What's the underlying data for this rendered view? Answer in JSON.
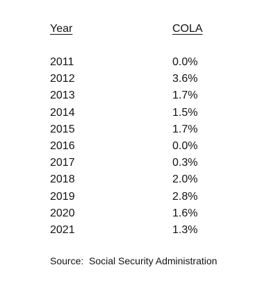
{
  "table": {
    "header": [
      "Year",
      "COLA"
    ],
    "rows": [
      [
        "2011",
        "0.0%"
      ],
      [
        "2012",
        "3.6%"
      ],
      [
        "2013",
        "1.7%"
      ],
      [
        "2014",
        "1.5%"
      ],
      [
        "2015",
        "1.7%"
      ],
      [
        "2016",
        "0.0%"
      ],
      [
        "2017",
        "0.3%"
      ],
      [
        "2018",
        "2.0%"
      ],
      [
        "2019",
        "2.8%"
      ],
      [
        "2020",
        "1.6%"
      ],
      [
        "2021",
        "1.3%"
      ]
    ]
  },
  "source": "Source:  Social Security Administration"
}
